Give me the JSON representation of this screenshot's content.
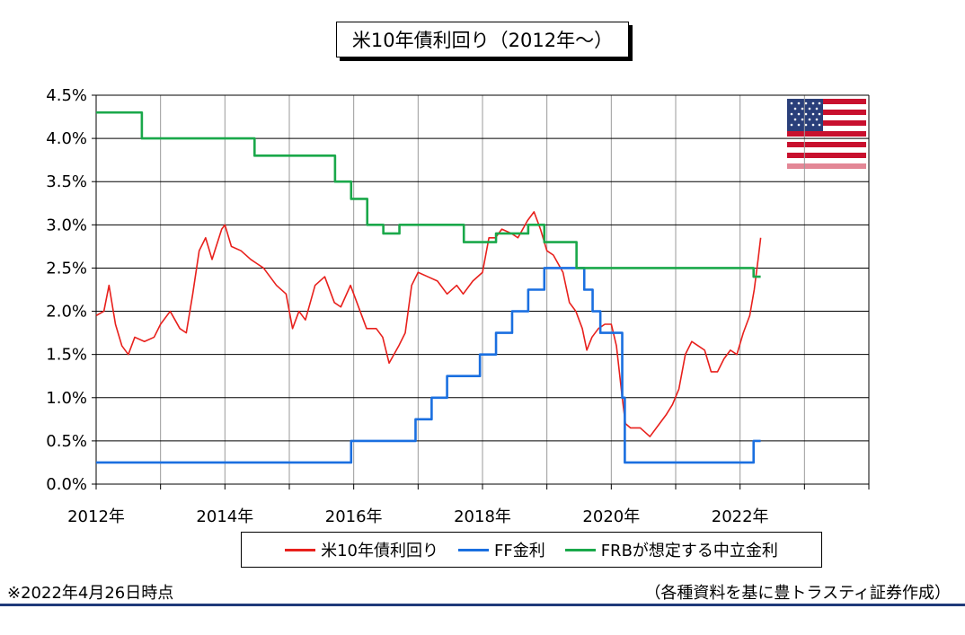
{
  "chart_data": {
    "type": "line",
    "title": "米10年債利回り（2012年～）",
    "x_ticks": [
      "2012年",
      "2014年",
      "2016年",
      "2018年",
      "2020年",
      "2022年"
    ],
    "y_ticks": [
      "0.0%",
      "0.5%",
      "1.0%",
      "1.5%",
      "2.0%",
      "2.5%",
      "3.0%",
      "3.5%",
      "4.0%",
      "4.5%"
    ],
    "xlim": [
      2012.0,
      2024.0
    ],
    "ylim": [
      0.0,
      4.5
    ],
    "grid": true,
    "legend_position": "bottom",
    "series": [
      {
        "name": "米10年債利回り",
        "color": "#e8201c",
        "style": "line",
        "points": [
          [
            2012.0,
            1.95
          ],
          [
            2012.12,
            2.0
          ],
          [
            2012.2,
            2.3
          ],
          [
            2012.3,
            1.85
          ],
          [
            2012.4,
            1.6
          ],
          [
            2012.5,
            1.5
          ],
          [
            2012.6,
            1.7
          ],
          [
            2012.75,
            1.65
          ],
          [
            2012.9,
            1.7
          ],
          [
            2013.0,
            1.85
          ],
          [
            2013.15,
            2.0
          ],
          [
            2013.3,
            1.8
          ],
          [
            2013.4,
            1.75
          ],
          [
            2013.5,
            2.2
          ],
          [
            2013.6,
            2.7
          ],
          [
            2013.7,
            2.85
          ],
          [
            2013.8,
            2.6
          ],
          [
            2013.95,
            2.95
          ],
          [
            2014.0,
            3.0
          ],
          [
            2014.1,
            2.75
          ],
          [
            2014.25,
            2.7
          ],
          [
            2014.4,
            2.6
          ],
          [
            2014.5,
            2.55
          ],
          [
            2014.6,
            2.5
          ],
          [
            2014.7,
            2.4
          ],
          [
            2014.8,
            2.3
          ],
          [
            2014.95,
            2.2
          ],
          [
            2015.05,
            1.8
          ],
          [
            2015.15,
            2.0
          ],
          [
            2015.25,
            1.9
          ],
          [
            2015.4,
            2.3
          ],
          [
            2015.55,
            2.4
          ],
          [
            2015.7,
            2.1
          ],
          [
            2015.8,
            2.05
          ],
          [
            2015.95,
            2.3
          ],
          [
            2016.05,
            2.1
          ],
          [
            2016.2,
            1.8
          ],
          [
            2016.35,
            1.8
          ],
          [
            2016.45,
            1.7
          ],
          [
            2016.55,
            1.4
          ],
          [
            2016.7,
            1.6
          ],
          [
            2016.8,
            1.75
          ],
          [
            2016.9,
            2.3
          ],
          [
            2017.0,
            2.45
          ],
          [
            2017.15,
            2.4
          ],
          [
            2017.3,
            2.35
          ],
          [
            2017.45,
            2.2
          ],
          [
            2017.6,
            2.3
          ],
          [
            2017.7,
            2.2
          ],
          [
            2017.85,
            2.35
          ],
          [
            2018.0,
            2.45
          ],
          [
            2018.1,
            2.85
          ],
          [
            2018.2,
            2.85
          ],
          [
            2018.3,
            2.95
          ],
          [
            2018.45,
            2.9
          ],
          [
            2018.55,
            2.85
          ],
          [
            2018.7,
            3.05
          ],
          [
            2018.8,
            3.15
          ],
          [
            2018.9,
            2.95
          ],
          [
            2019.0,
            2.7
          ],
          [
            2019.1,
            2.65
          ],
          [
            2019.25,
            2.45
          ],
          [
            2019.35,
            2.1
          ],
          [
            2019.45,
            2.0
          ],
          [
            2019.55,
            1.8
          ],
          [
            2019.62,
            1.55
          ],
          [
            2019.7,
            1.7
          ],
          [
            2019.8,
            1.8
          ],
          [
            2019.9,
            1.85
          ],
          [
            2020.0,
            1.85
          ],
          [
            2020.08,
            1.6
          ],
          [
            2020.17,
            1.0
          ],
          [
            2020.22,
            0.7
          ],
          [
            2020.3,
            0.65
          ],
          [
            2020.45,
            0.65
          ],
          [
            2020.6,
            0.55
          ],
          [
            2020.75,
            0.7
          ],
          [
            2020.85,
            0.8
          ],
          [
            2020.95,
            0.92
          ],
          [
            2021.05,
            1.1
          ],
          [
            2021.15,
            1.5
          ],
          [
            2021.25,
            1.65
          ],
          [
            2021.35,
            1.6
          ],
          [
            2021.45,
            1.55
          ],
          [
            2021.55,
            1.3
          ],
          [
            2021.65,
            1.3
          ],
          [
            2021.75,
            1.45
          ],
          [
            2021.85,
            1.55
          ],
          [
            2021.95,
            1.5
          ],
          [
            2022.05,
            1.75
          ],
          [
            2022.15,
            1.95
          ],
          [
            2022.22,
            2.25
          ],
          [
            2022.28,
            2.6
          ],
          [
            2022.32,
            2.85
          ]
        ]
      },
      {
        "name": "FF金利",
        "color": "#1a6fe0",
        "style": "step",
        "points": [
          [
            2012.0,
            0.25
          ],
          [
            2015.96,
            0.5
          ],
          [
            2016.96,
            0.75
          ],
          [
            2017.21,
            1.0
          ],
          [
            2017.45,
            1.25
          ],
          [
            2017.96,
            1.5
          ],
          [
            2018.21,
            1.75
          ],
          [
            2018.46,
            2.0
          ],
          [
            2018.71,
            2.25
          ],
          [
            2018.96,
            2.5
          ],
          [
            2019.58,
            2.25
          ],
          [
            2019.71,
            2.0
          ],
          [
            2019.83,
            1.75
          ],
          [
            2020.17,
            1.0
          ],
          [
            2020.21,
            0.25
          ],
          [
            2022.21,
            0.5
          ],
          [
            2022.32,
            0.5
          ]
        ]
      },
      {
        "name": "FRBが想定する中立金利",
        "color": "#1aa84a",
        "style": "step",
        "points": [
          [
            2012.0,
            4.3
          ],
          [
            2012.71,
            4.0
          ],
          [
            2014.46,
            3.8
          ],
          [
            2015.71,
            3.5
          ],
          [
            2015.96,
            3.3
          ],
          [
            2016.21,
            3.0
          ],
          [
            2016.46,
            2.9
          ],
          [
            2016.71,
            3.0
          ],
          [
            2017.71,
            2.8
          ],
          [
            2018.21,
            2.9
          ],
          [
            2018.71,
            3.0
          ],
          [
            2018.96,
            2.8
          ],
          [
            2019.46,
            2.5
          ],
          [
            2022.21,
            2.4
          ],
          [
            2022.32,
            2.4
          ]
        ]
      }
    ]
  },
  "legend": {
    "items": [
      {
        "label": "米10年債利回り",
        "color": "#e8201c"
      },
      {
        "label": "FF金利",
        "color": "#1a6fe0"
      },
      {
        "label": "FRBが想定する中立金利",
        "color": "#1aa84a"
      }
    ]
  },
  "footnote": "※2022年4月26日時点",
  "source": "（各種資料を基に豊トラスティ証券作成）",
  "flag_icon": "us-flag-icon"
}
